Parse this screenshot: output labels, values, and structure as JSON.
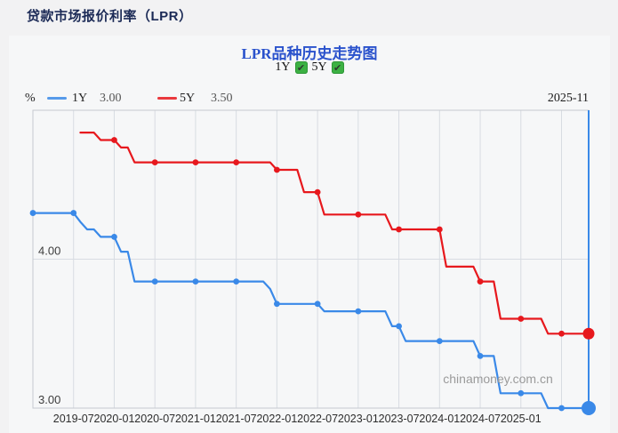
{
  "page": {
    "title": "贷款市场报价利率（LPR）",
    "watermark": "chinamoney.com.cn"
  },
  "chart": {
    "title": "LPR品种历史走势图",
    "unit_label": "%",
    "current_date": "2025-11",
    "toggles": [
      {
        "label": "1Y",
        "checked": true
      },
      {
        "label": "5Y",
        "checked": true
      }
    ],
    "legend": [
      {
        "label": "1Y",
        "value": "3.00"
      },
      {
        "label": "5Y",
        "value": "3.50"
      }
    ]
  },
  "colors": {
    "series_1y_blue": "#3a89e8",
    "series_5y_red": "#e7181d",
    "checkbox_green": "#3cb143",
    "page_title_navy": "#1b2a56",
    "chart_title_blue": "#2a52cc",
    "gridline": "#d8dce2",
    "plot_border": "#c6cad0",
    "watermark_gray": "#9b9b9b"
  },
  "chart_data": {
    "type": "line",
    "title": "LPR品种历史走势图",
    "xlabel": "",
    "ylabel": "%",
    "x_domain": [
      "2019-01",
      "2025-11"
    ],
    "ylim": [
      3.0,
      5.0
    ],
    "legend_position": "top-left",
    "grid": true,
    "current_date": "2025-11",
    "x_tick_labels": [
      "2019-07",
      "2020-01",
      "2020-07",
      "2021-01",
      "2021-07",
      "2022-01",
      "2022-07",
      "2023-01",
      "2023-07",
      "2024-01",
      "2024-07",
      "2025-01"
    ],
    "x_gridlines": [
      "2019-07",
      "2020-01",
      "2020-07",
      "2021-01",
      "2021-07",
      "2022-01",
      "2022-07",
      "2023-01",
      "2023-07",
      "2024-01",
      "2024-07",
      "2025-01",
      "2025-07"
    ],
    "y_inner_gridlines": [
      4.0
    ],
    "y_axis_labels": [
      {
        "value": 4.0,
        "label": "4.00"
      },
      {
        "value": 3.0,
        "label": "3.00"
      }
    ],
    "markers_at": [
      "2019-01",
      "2019-07",
      "2020-01",
      "2020-07",
      "2021-01",
      "2021-07",
      "2022-01",
      "2022-07",
      "2023-01",
      "2023-07",
      "2024-01",
      "2024-07",
      "2025-01",
      "2025-07"
    ],
    "series": [
      {
        "name": "1Y",
        "color": "#3a89e8",
        "current_value": 3.0,
        "points": [
          [
            "2019-01",
            4.31
          ],
          [
            "2019-07",
            4.31
          ],
          [
            "2019-08",
            4.25
          ],
          [
            "2019-09",
            4.2
          ],
          [
            "2019-10",
            4.2
          ],
          [
            "2019-11",
            4.15
          ],
          [
            "2020-01",
            4.15
          ],
          [
            "2020-02",
            4.05
          ],
          [
            "2020-03",
            4.05
          ],
          [
            "2020-04",
            3.85
          ],
          [
            "2021-11",
            3.85
          ],
          [
            "2021-12",
            3.8
          ],
          [
            "2022-01",
            3.7
          ],
          [
            "2022-07",
            3.7
          ],
          [
            "2022-08",
            3.65
          ],
          [
            "2023-05",
            3.65
          ],
          [
            "2023-06",
            3.55
          ],
          [
            "2023-07",
            3.55
          ],
          [
            "2023-08",
            3.45
          ],
          [
            "2024-06",
            3.45
          ],
          [
            "2024-07",
            3.35
          ],
          [
            "2024-09",
            3.35
          ],
          [
            "2024-10",
            3.1
          ],
          [
            "2025-04",
            3.1
          ],
          [
            "2025-05",
            3.0
          ],
          [
            "2025-11",
            3.0
          ]
        ]
      },
      {
        "name": "5Y",
        "color": "#e7181d",
        "current_value": 3.5,
        "points": [
          [
            "2019-08",
            4.85
          ],
          [
            "2019-10",
            4.85
          ],
          [
            "2019-11",
            4.8
          ],
          [
            "2020-01",
            4.8
          ],
          [
            "2020-02",
            4.75
          ],
          [
            "2020-03",
            4.75
          ],
          [
            "2020-04",
            4.65
          ],
          [
            "2021-12",
            4.65
          ],
          [
            "2022-01",
            4.6
          ],
          [
            "2022-04",
            4.6
          ],
          [
            "2022-05",
            4.45
          ],
          [
            "2022-07",
            4.45
          ],
          [
            "2022-08",
            4.3
          ],
          [
            "2023-05",
            4.3
          ],
          [
            "2023-06",
            4.2
          ],
          [
            "2024-01",
            4.2
          ],
          [
            "2024-02",
            3.95
          ],
          [
            "2024-06",
            3.95
          ],
          [
            "2024-07",
            3.85
          ],
          [
            "2024-09",
            3.85
          ],
          [
            "2024-10",
            3.6
          ],
          [
            "2025-04",
            3.6
          ],
          [
            "2025-05",
            3.5
          ],
          [
            "2025-11",
            3.5
          ]
        ]
      }
    ]
  }
}
